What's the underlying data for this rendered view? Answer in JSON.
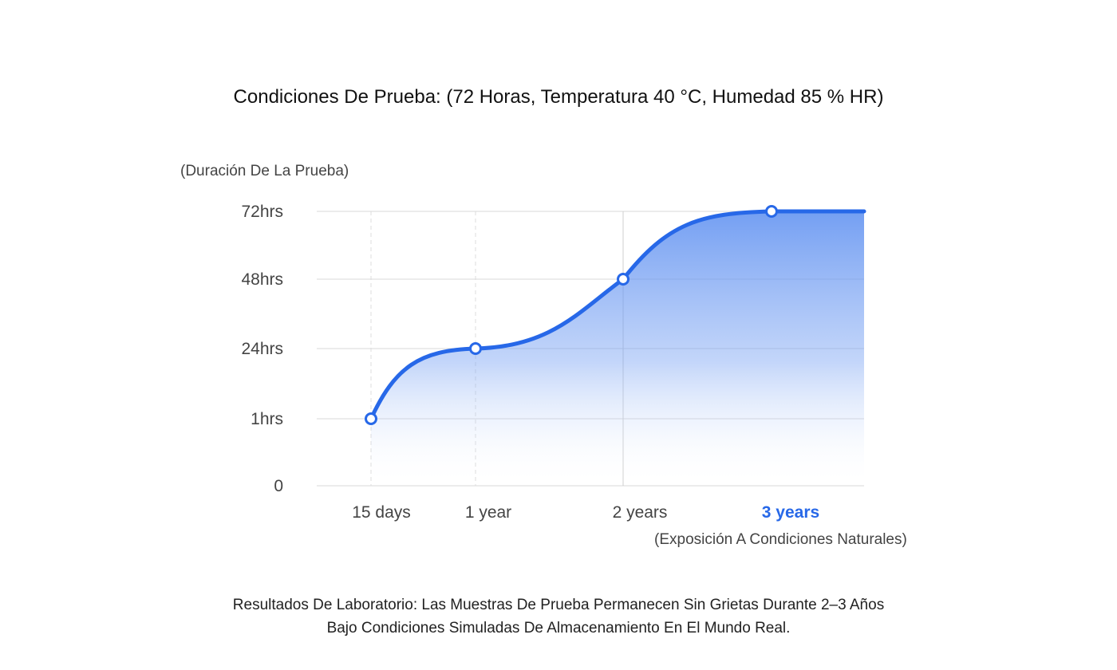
{
  "chart_data": {
    "type": "area",
    "title": "Condiciones De Prueba: (72 Horas, Temperatura 40 °C, Humedad 85 % HR)",
    "ylabel": "(Duración De La Prueba)",
    "xlabel": "(Exposición A Condiciones Naturales)",
    "y_ticks": [
      "0",
      "1hrs",
      "24hrs",
      "48hrs",
      "72hrs"
    ],
    "x_ticks": [
      "15 days",
      "1 year",
      "2 years",
      "3 years"
    ],
    "highlight_tick": "3 years",
    "categories": [
      "15 days",
      "1 year",
      "2 years",
      "3 years"
    ],
    "values": [
      "1hrs",
      "24hrs",
      "48hrs",
      "72hrs"
    ],
    "ylim": [
      "0",
      "72hrs"
    ],
    "grid": true,
    "colors": {
      "line": "#2768e8",
      "fill_top": "#5b8ef0",
      "highlight": "#2768e8",
      "grid": "#d8d8d8"
    }
  },
  "footer": {
    "line1": "Resultados De Laboratorio: Las Muestras De Prueba Permanecen Sin Grietas Durante 2–3 Años",
    "line2": "Bajo Condiciones Simuladas De Almacenamiento En El Mundo Real."
  }
}
